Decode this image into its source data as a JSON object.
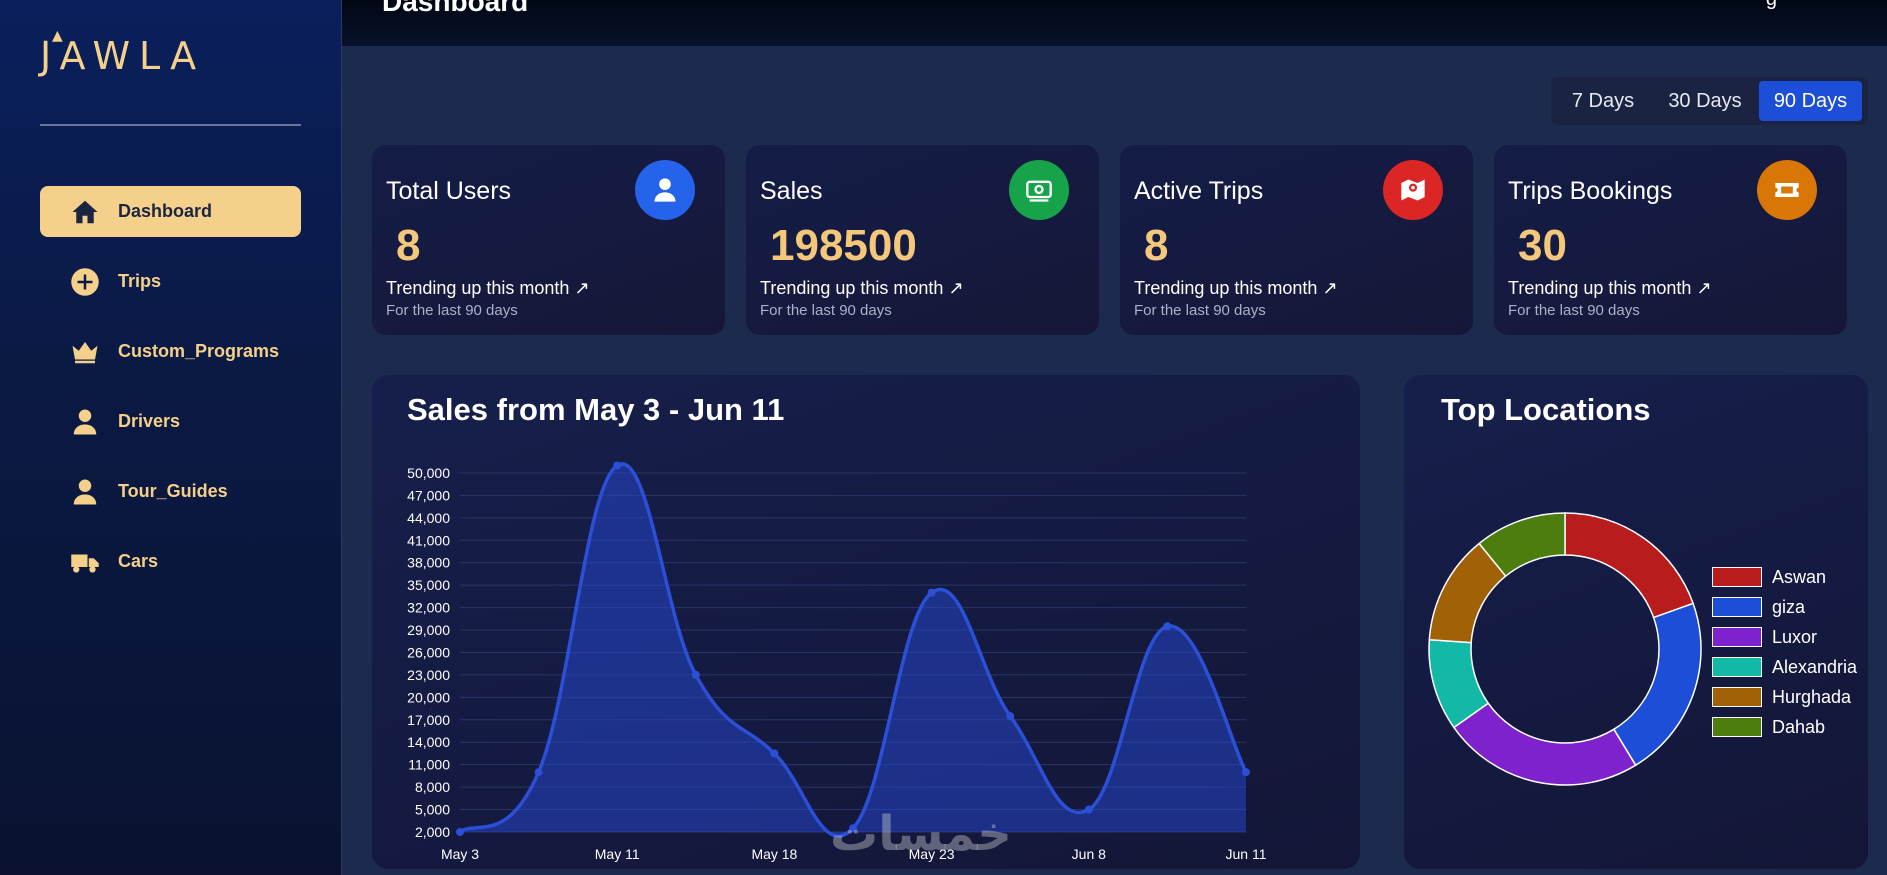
{
  "app": {
    "logo_text": "JAWLA"
  },
  "header": {
    "title": "Dashboard",
    "right_text": "g"
  },
  "sidebar": {
    "items": [
      {
        "label": "Dashboard",
        "icon": "home-icon",
        "active": true
      },
      {
        "label": "Trips",
        "icon": "plus-circle-icon",
        "active": false
      },
      {
        "label": "Custom_Programs",
        "icon": "crown-icon",
        "active": false
      },
      {
        "label": "Drivers",
        "icon": "user-icon",
        "active": false
      },
      {
        "label": "Tour_Guides",
        "icon": "user-icon",
        "active": false
      },
      {
        "label": "Cars",
        "icon": "truck-icon",
        "active": false
      }
    ]
  },
  "range": {
    "options": [
      "7 Days",
      "30 Days",
      "90 Days"
    ],
    "selected": "90 Days"
  },
  "cards": [
    {
      "title": "Total Users",
      "value": "8",
      "trend": "Trending up this month ↗",
      "sub": "For the last 90 days",
      "icon": "user-icon",
      "color": "#2563eb"
    },
    {
      "title": "Sales",
      "value": "198500",
      "trend": "Trending up this month ↗",
      "sub": "For the last 90 days",
      "icon": "money-icon",
      "color": "#16a34a"
    },
    {
      "title": "Active Trips",
      "value": "8",
      "trend": "Trending up this month ↗",
      "sub": "For the last 90 days",
      "icon": "map-pin-icon",
      "color": "#dc2626"
    },
    {
      "title": "Trips Bookings",
      "value": "30",
      "trend": "Trending up this month ↗",
      "sub": "For the last 90 days",
      "icon": "ticket-icon",
      "color": "#d97706"
    }
  ],
  "sales_panel": {
    "title": "Sales from May 3 - Jun 11"
  },
  "locations_panel": {
    "title": "Top Locations"
  },
  "watermark": "خمسات",
  "chart_data": [
    {
      "type": "area",
      "title": "Sales from May 3 - Jun 11",
      "x_tick_labels": [
        "May 3",
        "May 11",
        "May 18",
        "May 23",
        "Jun 8",
        "Jun 11"
      ],
      "y_ticks": [
        2000,
        5000,
        8000,
        11000,
        14000,
        17000,
        20000,
        23000,
        26000,
        29000,
        32000,
        35000,
        38000,
        41000,
        44000,
        47000,
        50000
      ],
      "ylim": [
        2000,
        52000
      ],
      "grid": true,
      "color": "#2c4fd8",
      "points": [
        {
          "x": 0,
          "y": 2000
        },
        {
          "x": 1,
          "y": 10000
        },
        {
          "x": 2,
          "y": 51000
        },
        {
          "x": 3,
          "y": 23000
        },
        {
          "x": 4,
          "y": 12500
        },
        {
          "x": 5,
          "y": 2500
        },
        {
          "x": 6,
          "y": 34000
        },
        {
          "x": 7,
          "y": 17500
        },
        {
          "x": 8,
          "y": 5000
        },
        {
          "x": 9,
          "y": 29500
        },
        {
          "x": 10,
          "y": 10000
        }
      ],
      "x_tick_positions": [
        0,
        2,
        4,
        6,
        8,
        10
      ]
    },
    {
      "type": "pie",
      "title": "Top Locations",
      "legend_position": "right",
      "labels": [
        "Aswan",
        "giza",
        "Luxor",
        "Alexandria",
        "Hurghada",
        "Dahab"
      ],
      "values": [
        18,
        20,
        22,
        10,
        12,
        10
      ],
      "colors": [
        "#b91c1c",
        "#1d4ed8",
        "#7e22ce",
        "#14b8a6",
        "#a16207",
        "#4d7c0f"
      ]
    }
  ]
}
